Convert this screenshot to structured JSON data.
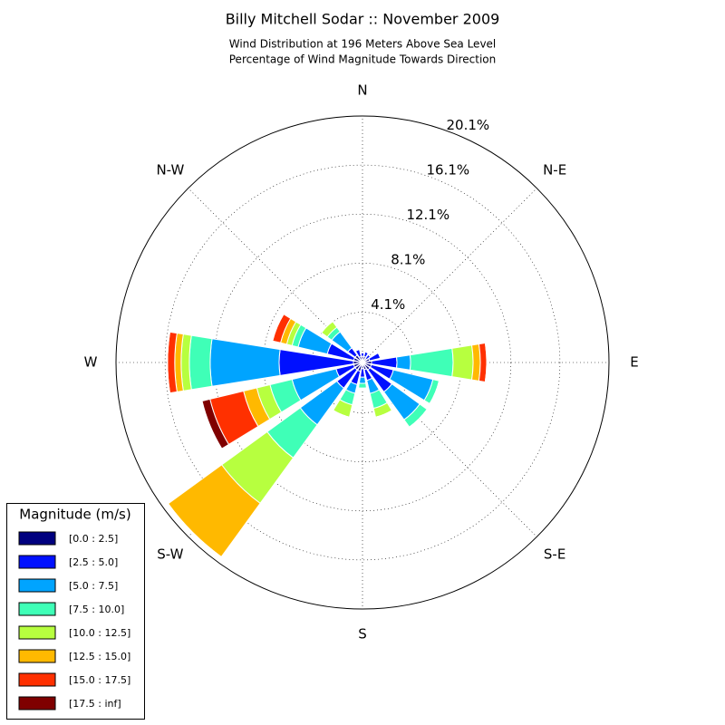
{
  "chart_data": {
    "type": "windrose",
    "title": "Billy Mitchell Sodar :: November 2009",
    "subtitle": [
      "Wind Distribution at 196 Meters Above Sea Level",
      "Percentage of Wind Magnitude Towards Direction"
    ],
    "categories": [
      "N",
      null,
      "N-E",
      null,
      "E",
      null,
      "S-E",
      null,
      "S",
      null,
      "S-W",
      null,
      "W",
      null,
      "N-W",
      null
    ],
    "rlim": [
      0,
      20.1
    ],
    "rticks": [
      {
        "value": 4.1,
        "label": "4.1%"
      },
      {
        "value": 8.1,
        "label": "8.1%"
      },
      {
        "value": 12.1,
        "label": "12.1%"
      },
      {
        "value": 16.1,
        "label": "16.1%"
      },
      {
        "value": 20.1,
        "label": "20.1%"
      }
    ],
    "grid": true,
    "legend": "lower left",
    "legend_title": "Magnitude (m/s)",
    "series": [
      {
        "name": "[0.0 : 2.5]",
        "color": "#00007f",
        "values": [
          0.5,
          0.5,
          0.4,
          0.6,
          0.74,
          0.74,
          0.74,
          0.6,
          0.5,
          0.74,
          0.74,
          0.74,
          0.74,
          0.74,
          0.74,
          0.5
        ]
      },
      {
        "name": "[2.5 : 5.0]",
        "color": "#0010ff",
        "values": [
          0.3,
          0.4,
          0.4,
          0.9,
          2.07,
          1.85,
          2.22,
          0.9,
          0.7,
          1.11,
          1.85,
          1.48,
          6.06,
          2.22,
          0.74,
          0.6
        ]
      },
      {
        "name": "[5.0 : 7.5]",
        "color": "#00a4ff",
        "values": [
          0,
          0,
          0,
          0,
          1.11,
          3.32,
          2.81,
          1.1,
          0.5,
          0.74,
          3.69,
          3.69,
          5.62,
          2.44,
          1.62,
          0
        ]
      },
      {
        "name": "[7.5 : 10.0]",
        "color": "#3fffb7",
        "values": [
          0,
          0,
          0,
          0,
          3.47,
          0.52,
          0.74,
          1.25,
          0.4,
          0.96,
          3.33,
          1.85,
          1.7,
          0.51,
          0.45,
          0
        ]
      },
      {
        "name": "[10.0 : 12.5]",
        "color": "#b7ff3f",
        "values": [
          0,
          0,
          0,
          0,
          1.63,
          0,
          0,
          0.74,
          0,
          1.03,
          4.58,
          1.11,
          0.67,
          0.45,
          0.59,
          0
        ]
      },
      {
        "name": "[12.5 : 15.0]",
        "color": "#ffb900",
        "values": [
          0,
          0,
          0,
          0,
          0.59,
          0,
          0,
          0,
          0,
          0,
          5.4,
          1.11,
          0.52,
          0.51,
          0,
          0
        ]
      },
      {
        "name": "[15.0 : 17.5]",
        "color": "#ff3000",
        "values": [
          0,
          0,
          0,
          0,
          0.52,
          0,
          0,
          0,
          0,
          0,
          0,
          2.81,
          0.59,
          0.67,
          0,
          0
        ]
      },
      {
        "name": "[17.5 : inf]",
        "color": "#7f0000",
        "values": [
          0,
          0,
          0,
          0,
          0,
          0,
          0,
          0,
          0,
          0,
          0,
          0.66,
          0,
          0,
          0,
          0
        ]
      }
    ]
  }
}
